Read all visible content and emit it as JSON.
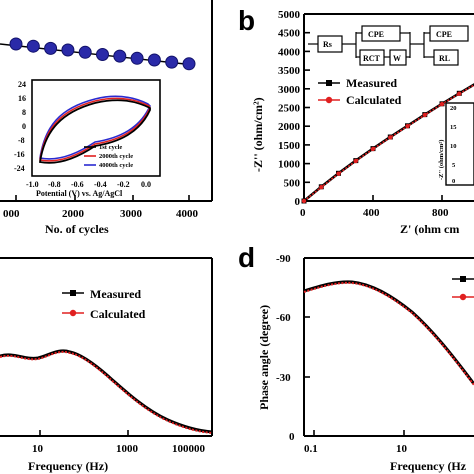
{
  "panels": {
    "a": {
      "xlabel": "No. of cycles",
      "x_ticks": [
        "000",
        "2000",
        "3000",
        "4000"
      ],
      "inset": {
        "xlabel": "Potential (V) vs. Ag/AgCl",
        "x_ticks": [
          "-1.0",
          "-0.8",
          "-0.6",
          "-0.4",
          "-0.2",
          "0.0"
        ],
        "y_ticks": [
          "24",
          "16",
          "8",
          "0",
          "-8",
          "-16",
          "-24"
        ],
        "legend": [
          "1st cycle",
          "2000th cycle",
          "4000th cycle"
        ]
      }
    },
    "b": {
      "label": "b",
      "xlabel": "Z' (ohm cm",
      "ylabel": "-Z'' (ohm/cm²)",
      "x_ticks": [
        "0",
        "400",
        "800"
      ],
      "y_ticks": [
        "0",
        "500",
        "1000",
        "1500",
        "2000",
        "2500",
        "3000",
        "3500",
        "4000",
        "4500",
        "5000"
      ],
      "legend": [
        "Measured",
        "Calculated"
      ],
      "circuit": [
        "Rs",
        "CPE",
        "RCT",
        "W",
        "CPE",
        "RL"
      ],
      "inset": {
        "ylabel": "-Z'' (ohm/cm²)",
        "y_ticks": [
          "20",
          "15",
          "10",
          "5",
          "0"
        ]
      }
    },
    "c": {
      "xlabel": "Frequency (Hz)",
      "x_ticks": [
        "10",
        "1000",
        "100000"
      ],
      "legend": [
        "Measured",
        "Calculated"
      ]
    },
    "d": {
      "label": "d",
      "xlabel": "Frequency (Hz",
      "ylabel": "Phase angle (degree)",
      "x_ticks": [
        "0.1",
        "10"
      ],
      "y_ticks": [
        "-90",
        "-60",
        "-30",
        "0"
      ]
    }
  },
  "chart_data": [
    {
      "type": "scatter",
      "panel": "a",
      "xlabel": "No. of cycles",
      "series": [
        {
          "x": [
            0,
            400,
            800,
            1200,
            1600,
            2000,
            2400,
            2800,
            3200,
            3600,
            4000
          ],
          "y": [
            100,
            99.6,
            99.2,
            98.9,
            98.5,
            98.1,
            97.8,
            97.4,
            97.1,
            96.7,
            96.4
          ]
        }
      ],
      "color": "#2a2aa8"
    },
    {
      "type": "line",
      "panel": "a-inset",
      "xlabel": "Potential (V) vs. Ag/AgCl",
      "xlim": [
        -1.0,
        0.0
      ],
      "ylim": [
        -28,
        24
      ],
      "series": [
        {
          "name": "1st cycle",
          "color": "#000000"
        },
        {
          "name": "2000th cycle",
          "color": "#e02020"
        },
        {
          "name": "4000th cycle",
          "color": "#2a2ad0"
        }
      ]
    },
    {
      "type": "scatter",
      "panel": "b",
      "xlabel": "Z' (ohm cm",
      "ylabel": "-Z'' (ohm/cm²)",
      "xlim": [
        0,
        1100
      ],
      "ylim": [
        0,
        5000
      ],
      "series": [
        {
          "name": "Measured",
          "color": "#000000",
          "x": [
            0,
            100,
            200,
            300,
            400,
            500,
            600,
            700,
            800,
            900,
            1000,
            1100
          ],
          "y": [
            0,
            380,
            740,
            1080,
            1400,
            1710,
            2010,
            2310,
            2600,
            2880,
            3150,
            3420
          ]
        },
        {
          "name": "Calculated",
          "color": "#e02020",
          "x": [
            0,
            100,
            200,
            300,
            400,
            500,
            600,
            700,
            800,
            900,
            1000,
            1100
          ],
          "y": [
            0,
            370,
            730,
            1070,
            1390,
            1700,
            2000,
            2300,
            2590,
            2870,
            3140,
            3410
          ]
        }
      ]
    },
    {
      "type": "line",
      "panel": "c",
      "xlabel": "Frequency (Hz)",
      "series": [
        {
          "name": "Measured",
          "color": "#000000"
        },
        {
          "name": "Calculated",
          "color": "#e02020"
        }
      ]
    },
    {
      "type": "line",
      "panel": "d",
      "xlabel": "Frequency (Hz",
      "ylabel": "Phase angle (degree)",
      "ylim": [
        0,
        -90
      ],
      "series": [
        {
          "name": "Measured",
          "color": "#000000",
          "x": [
            0.1,
            0.3,
            1,
            3,
            10,
            30,
            100
          ],
          "y": [
            -73,
            -75,
            -76,
            -74,
            -66,
            -52,
            -35
          ]
        },
        {
          "name": "Calculated",
          "color": "#e02020",
          "x": [
            0.1,
            0.3,
            1,
            3,
            10,
            30,
            100
          ],
          "y": [
            -73,
            -75,
            -76,
            -74,
            -66,
            -52,
            -35
          ]
        }
      ]
    }
  ]
}
